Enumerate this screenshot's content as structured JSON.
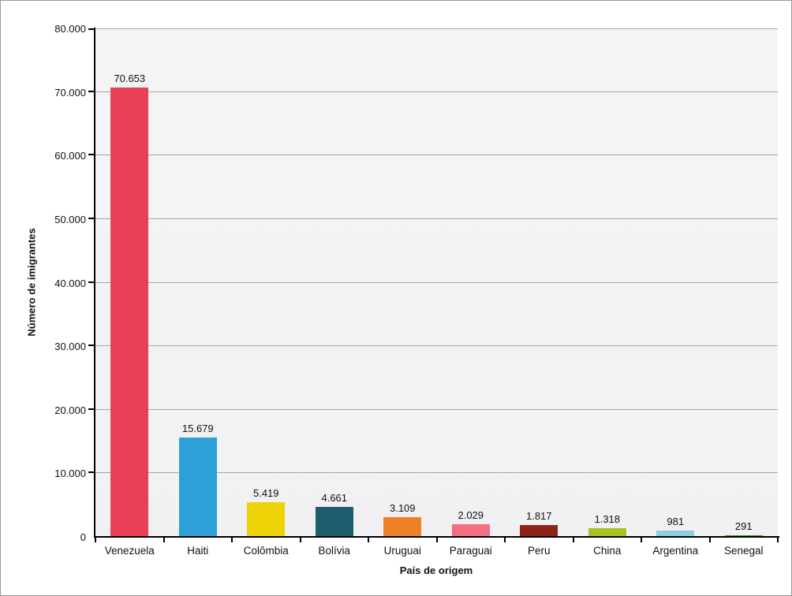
{
  "chart_data": {
    "type": "bar",
    "title": "",
    "xlabel": "País de origem",
    "ylabel": "Número de imigrantes",
    "ylim": [
      0,
      80000
    ],
    "grid": true,
    "legend": false,
    "categories": [
      "Venezuela",
      "Haiti",
      "Colômbia",
      "Bolívia",
      "Uruguai",
      "Paraguai",
      "Peru",
      "China",
      "Argentina",
      "Senegal"
    ],
    "values": [
      70653,
      15679,
      5419,
      4661,
      3109,
      2029,
      1817,
      1318,
      981,
      291
    ],
    "value_labels": [
      "70.653",
      "15.679",
      "5.419",
      "4.661",
      "3.109",
      "2.029",
      "1.817",
      "1.318",
      "981",
      "291"
    ],
    "bar_colors": [
      "#e84056",
      "#2d9fd9",
      "#eed308",
      "#1e5e6c",
      "#ee8128",
      "#f26e83",
      "#8c2518",
      "#a6c41f",
      "#8acfe3",
      "#47912c"
    ],
    "yticks": [
      {
        "value": 0,
        "label": "0"
      },
      {
        "value": 10000,
        "label": "10.000"
      },
      {
        "value": 20000,
        "label": "20.000"
      },
      {
        "value": 30000,
        "label": "30.000"
      },
      {
        "value": 40000,
        "label": "40.000"
      },
      {
        "value": 50000,
        "label": "50.000"
      },
      {
        "value": 60000,
        "label": "60.000"
      },
      {
        "value": 70000,
        "label": "70.000"
      },
      {
        "value": 80000,
        "label": "80.000"
      }
    ]
  },
  "colors": {
    "page_bg": "#ffffff",
    "plot_bg": "#f3f3f5",
    "gridline": "#a4a5a8",
    "axis": "#000000",
    "border": "#9a9a9e",
    "text": "#111111"
  }
}
